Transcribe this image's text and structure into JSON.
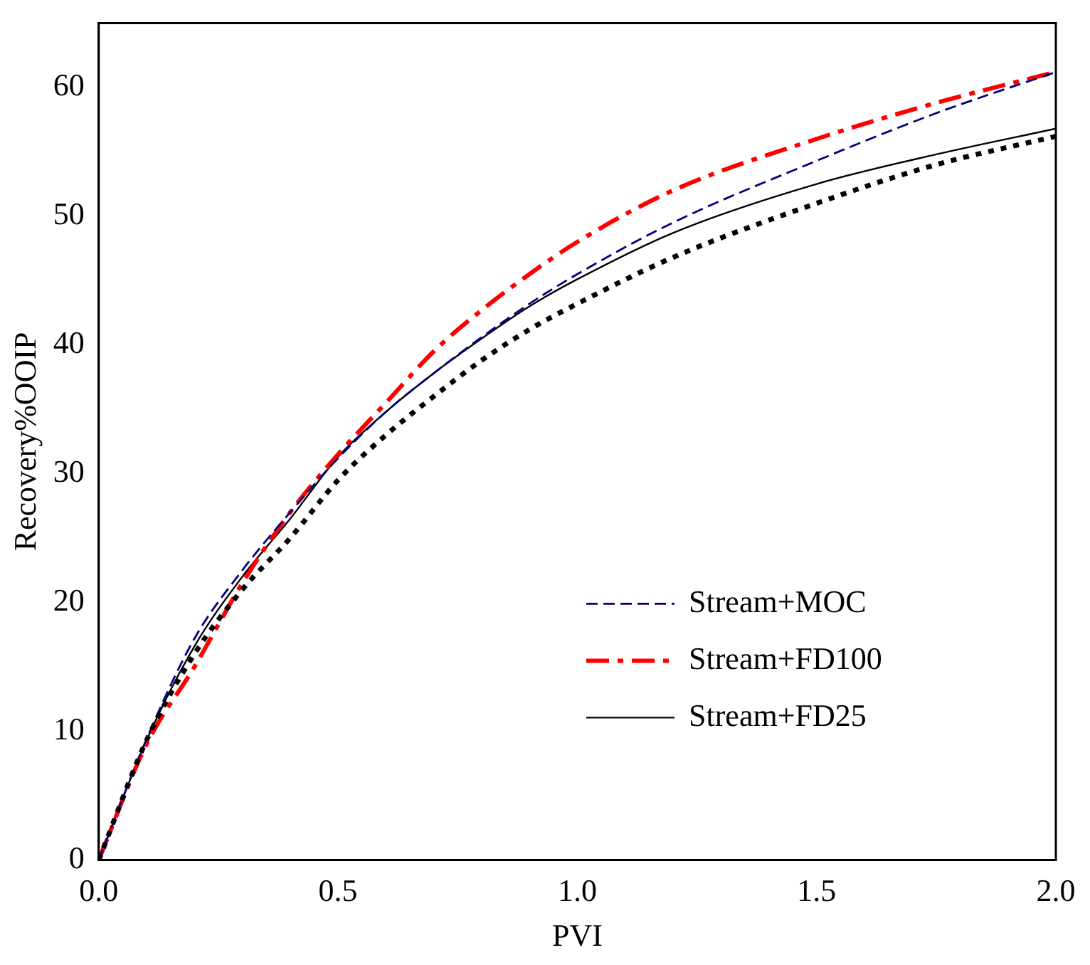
{
  "chart_data": {
    "type": "line",
    "xlabel": "PVI",
    "ylabel": "Recovery%OOIP",
    "xlim": [
      0,
      2
    ],
    "xticks": [
      {
        "value": 0,
        "label": "0.0"
      },
      {
        "value": 0.5,
        "label": "0.5"
      },
      {
        "value": 1,
        "label": "1.0"
      },
      {
        "value": 1.5,
        "label": "1.5"
      },
      {
        "value": 2,
        "label": "2.0"
      }
    ],
    "ylim": [
      0,
      65
    ],
    "yticks": [
      0,
      10,
      20,
      30,
      40,
      50,
      60
    ],
    "grid": false,
    "legend": "bottom right",
    "marker": "none",
    "x": [
      0,
      0.1,
      0.2,
      0.3,
      0.4,
      0.5,
      0.6,
      0.7,
      0.8,
      0.9,
      1.0,
      1.2,
      1.5,
      1.75,
      2.0
    ],
    "series": [
      {
        "color": "#000000",
        "line_style": "dotted",
        "values": [
          0,
          9.3,
          16,
          21,
          25,
          29.5,
          33,
          36,
          38.8,
          41.2,
          43.2,
          46.8,
          51,
          54,
          56.2
        ]
      },
      {
        "name": "Stream+MOC",
        "color": "#000080",
        "line_style": "dashed",
        "values": [
          0,
          9.4,
          17.2,
          22.5,
          27,
          31.2,
          34.8,
          37.8,
          40.6,
          43.2,
          45.5,
          49.5,
          54.3,
          58,
          61.2
        ]
      },
      {
        "name": "Stream+FD100",
        "color": "#ff0000",
        "line_style": "dashdot",
        "values": [
          0,
          9,
          15,
          21.5,
          27,
          31.5,
          35.5,
          39.5,
          42.7,
          45.5,
          48,
          52,
          56,
          58.8,
          61.2
        ]
      },
      {
        "name": "Stream+FD25",
        "color": "#000000",
        "line_style": "solid",
        "values": [
          0,
          9.3,
          16.6,
          22,
          26.5,
          31.3,
          34.8,
          37.8,
          40.5,
          43,
          45.1,
          48.7,
          52.5,
          54.8,
          56.8
        ]
      }
    ]
  }
}
